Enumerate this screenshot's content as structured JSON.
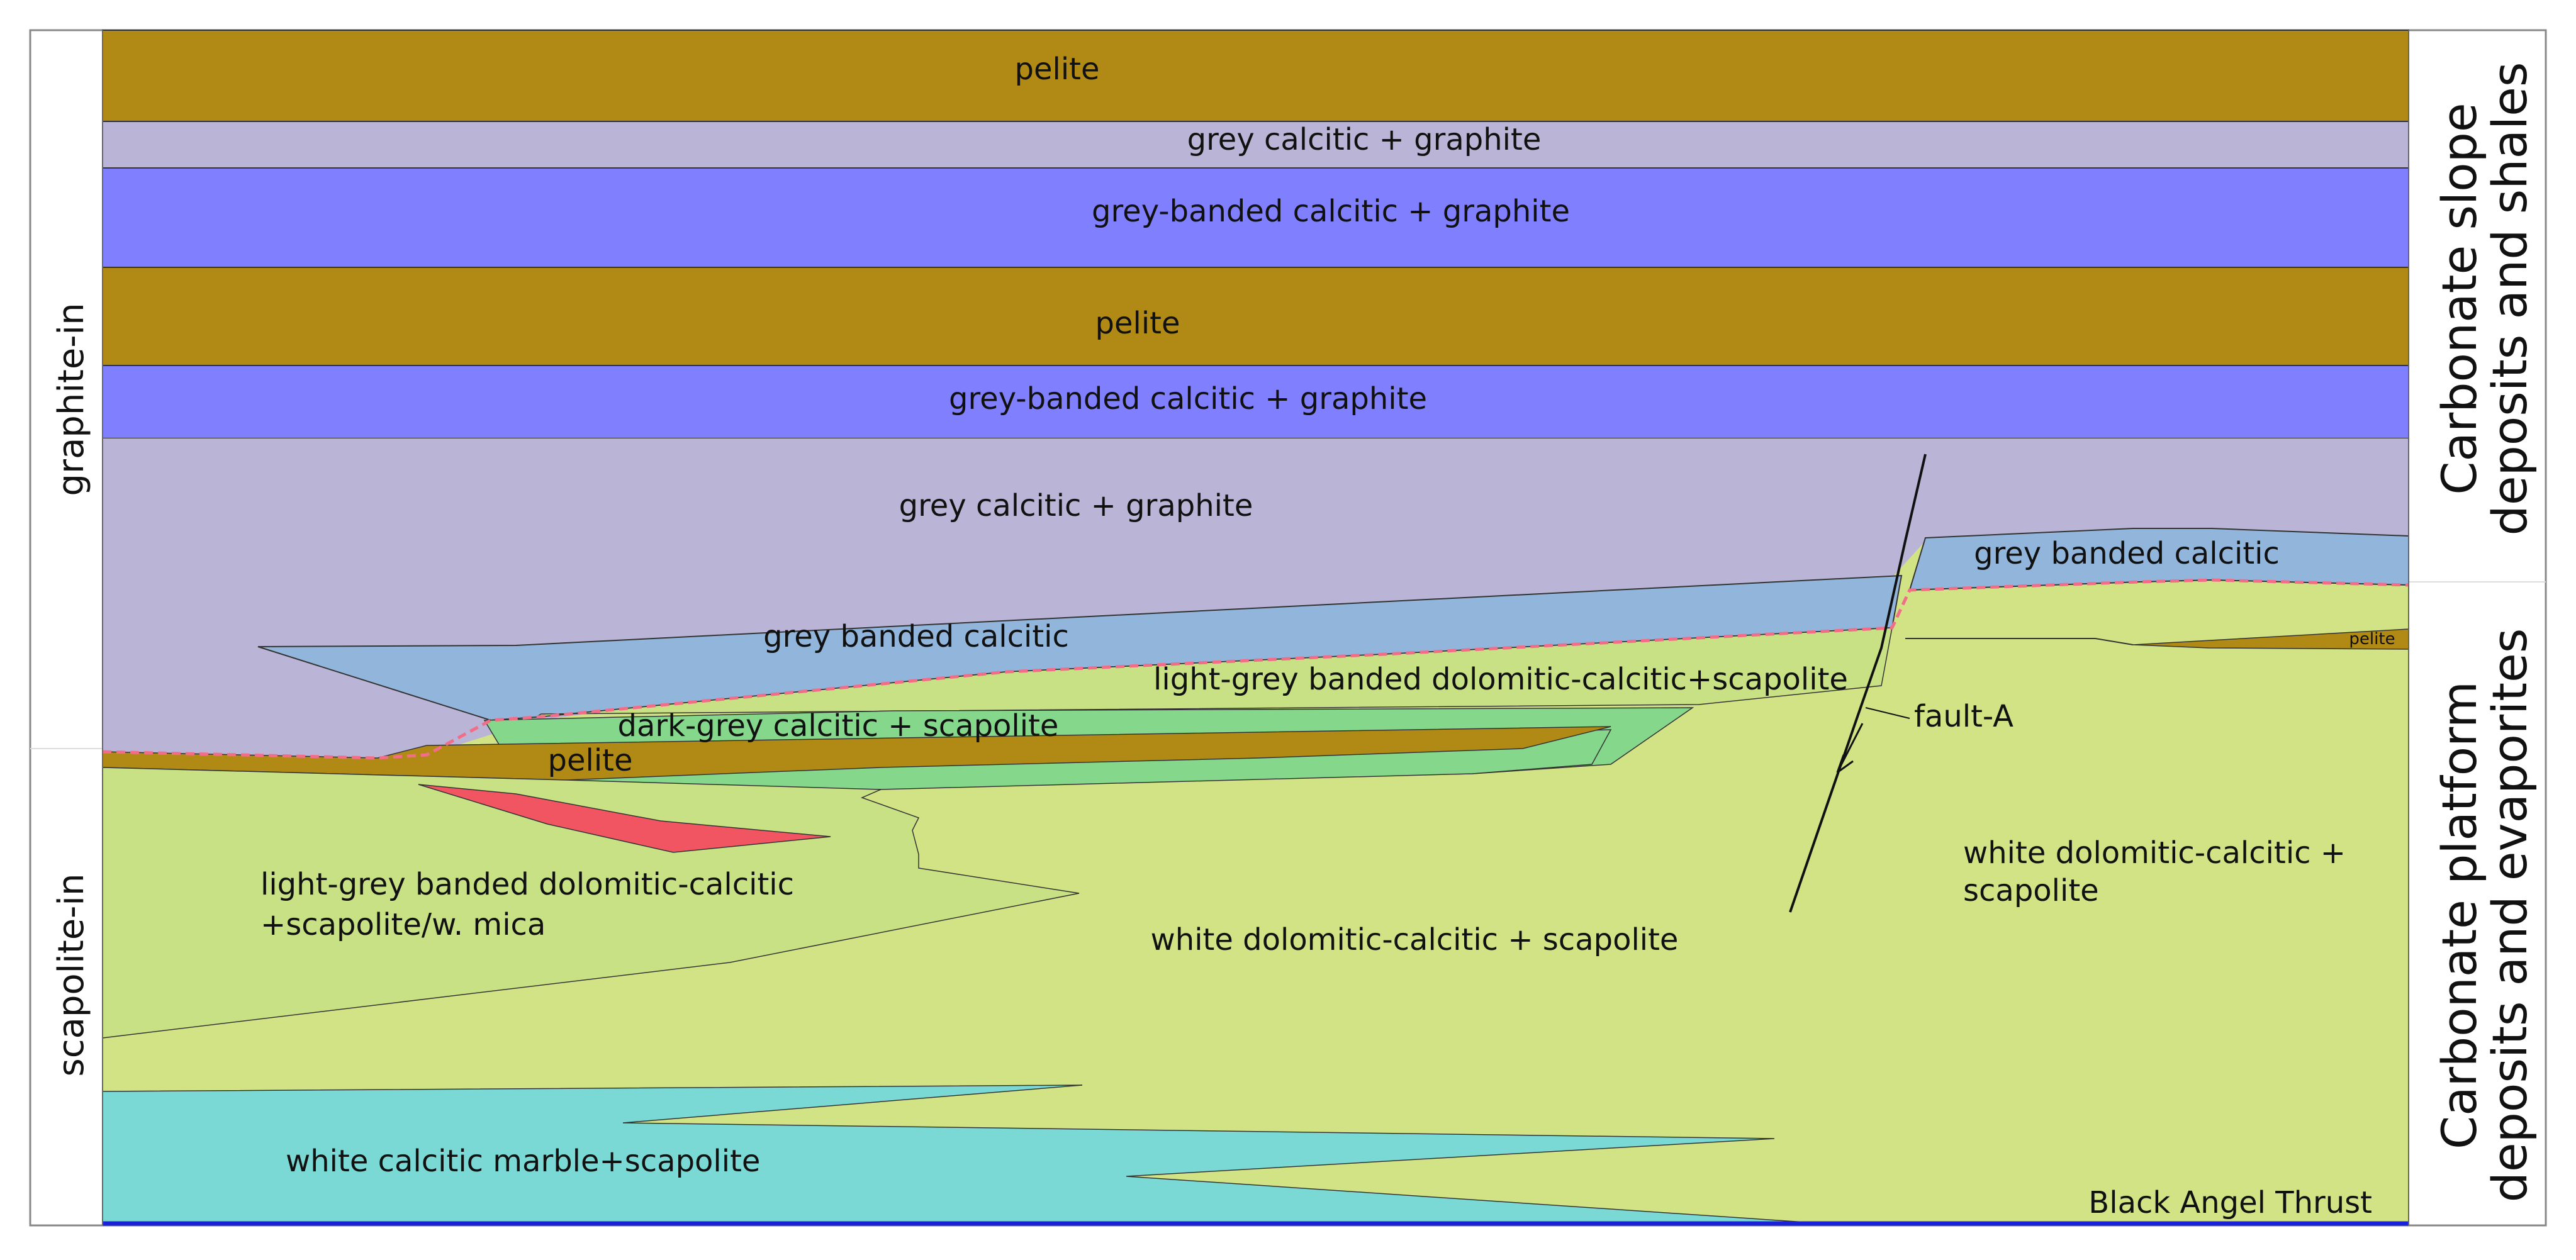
{
  "colors": {
    "pelite": "#b18a15",
    "grey_calcitic_graphite": "#bab5d7",
    "grey_banded_calcitic_graphite": "#8080fe",
    "grey_banded_calcitic": "#92b5dc",
    "light_grey_banded_dolomitic": "#c8e185",
    "dark_grey_calcitic": "#84d78b",
    "white_dolomitic_calcitic": "#d2e385",
    "white_calcitic_marble": "#7ad9d4",
    "red_lens": "#f25562",
    "isograd_line": "#f26e88",
    "thrust_line": "#1a22d8",
    "outline": "#222222"
  },
  "left_labels": {
    "graphite_in": "graphite-in",
    "scapolite_in": "scapolite-in"
  },
  "right_labels": {
    "upper": [
      "Carbonate slope",
      "deposits and shales"
    ],
    "lower": [
      "Carbonate platform",
      "deposits and evaporites"
    ]
  },
  "units": {
    "pelite_top": "pelite",
    "grey_calcitic_graphite_1": "grey calcitic + graphite",
    "grey_banded_calcitic_graphite_1": "grey-banded calcitic + graphite",
    "pelite_2": "pelite",
    "grey_banded_calcitic_graphite_2": "grey-banded calcitic + graphite",
    "grey_calcitic_graphite_2": "grey calcitic + graphite",
    "grey_banded_calcitic_west": "grey banded calcitic",
    "grey_banded_calcitic_east": "grey banded calcitic",
    "light_grey_banded_dolomitic_scapolite": "light-grey banded dolomitic-calcitic+scapolite",
    "dark_grey_calcitic_scapolite": "dark-grey calcitic + scapolite",
    "pelite_lens": "pelite",
    "pelite_small_east": "pelite",
    "light_grey_banded_mica_line1": "light-grey banded dolomitic-calcitic",
    "light_grey_banded_mica_line2": "+scapolite/w. mica",
    "white_dolomitic_calcitic_scapolite": "white dolomitic-calcitic + scapolite",
    "white_dolomitic_east_line1": "white dolomitic-calcitic +",
    "white_dolomitic_east_line2": "scapolite",
    "white_calcitic_marble_scapolite": "white calcitic marble+scapolite"
  },
  "structures": {
    "fault": "fault-A",
    "thrust": "Black Angel Thrust"
  }
}
